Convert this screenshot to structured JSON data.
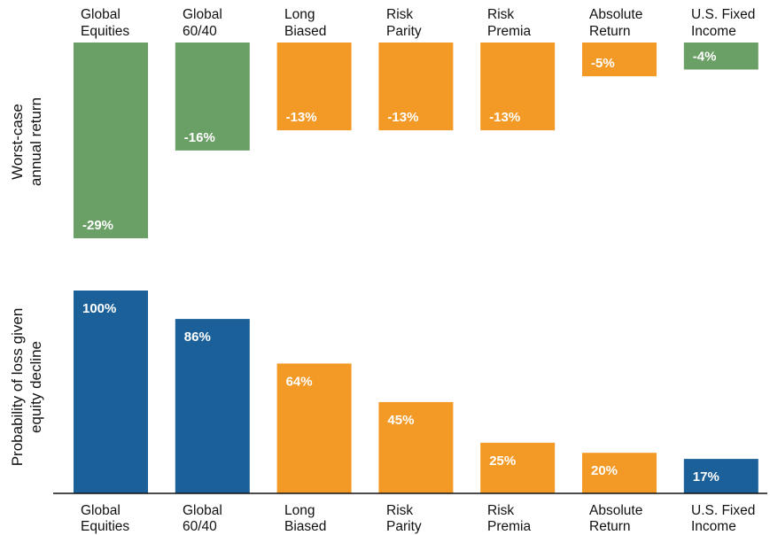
{
  "colors": {
    "green": "#6a9f65",
    "orange": "#f39a26",
    "blue": "#1b6098",
    "axis": "#111111"
  },
  "chart_data": [
    {
      "type": "bar",
      "ylabel": [
        "Worst-case",
        "annual return"
      ],
      "categories": [
        [
          "Global",
          "Equities"
        ],
        [
          "Global",
          "60/40"
        ],
        [
          "Long",
          "Biased"
        ],
        [
          "Risk",
          "Parity"
        ],
        [
          "Risk",
          "Premia"
        ],
        [
          "Absolute",
          "Return"
        ],
        [
          "U.S. Fixed",
          "Income"
        ]
      ],
      "values": [
        -29,
        -16,
        -13,
        -13,
        -13,
        -5,
        -4
      ],
      "labels": [
        "-29%",
        "-16%",
        "-13%",
        "-13%",
        "-13%",
        "-5%",
        "-4%"
      ],
      "bar_colors": [
        "green",
        "green",
        "orange",
        "orange",
        "orange",
        "orange",
        "green"
      ],
      "ylim": [
        -29,
        0
      ],
      "unit": "%"
    },
    {
      "type": "bar",
      "ylabel": [
        "Probability of loss given",
        "equity decline"
      ],
      "categories": [
        [
          "Global",
          "Equities"
        ],
        [
          "Global",
          "60/40"
        ],
        [
          "Long",
          "Biased"
        ],
        [
          "Risk",
          "Parity"
        ],
        [
          "Risk",
          "Premia"
        ],
        [
          "Absolute",
          "Return"
        ],
        [
          "U.S. Fixed",
          "Income"
        ]
      ],
      "values": [
        100,
        86,
        64,
        45,
        25,
        20,
        17
      ],
      "labels": [
        "100%",
        "86%",
        "64%",
        "45%",
        "25%",
        "20%",
        "17%"
      ],
      "bar_colors": [
        "blue",
        "blue",
        "orange",
        "orange",
        "orange",
        "orange",
        "blue"
      ],
      "ylim": [
        0,
        100
      ],
      "unit": "%"
    }
  ]
}
